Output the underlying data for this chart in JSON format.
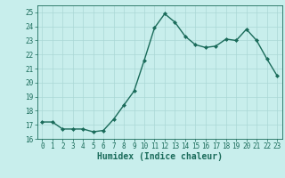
{
  "x": [
    0,
    1,
    2,
    3,
    4,
    5,
    6,
    7,
    8,
    9,
    10,
    11,
    12,
    13,
    14,
    15,
    16,
    17,
    18,
    19,
    20,
    21,
    22,
    23
  ],
  "y": [
    17.2,
    17.2,
    16.7,
    16.7,
    16.7,
    16.5,
    16.6,
    17.4,
    18.4,
    19.4,
    21.6,
    23.9,
    24.9,
    24.3,
    23.3,
    22.7,
    22.5,
    22.6,
    23.1,
    23.0,
    23.8,
    23.0,
    21.7,
    20.5
  ],
  "line_color": "#1a6b5a",
  "marker": "D",
  "marker_size": 2,
  "bg_color": "#c8eeec",
  "grid_color": "#aad8d6",
  "xlabel": "Humidex (Indice chaleur)",
  "xlabel_fontsize": 7,
  "xlim": [
    -0.5,
    23.5
  ],
  "ylim": [
    16,
    25.5
  ],
  "yticks": [
    16,
    17,
    18,
    19,
    20,
    21,
    22,
    23,
    24,
    25
  ],
  "xticks": [
    0,
    1,
    2,
    3,
    4,
    5,
    6,
    7,
    8,
    9,
    10,
    11,
    12,
    13,
    14,
    15,
    16,
    17,
    18,
    19,
    20,
    21,
    22,
    23
  ],
  "tick_fontsize": 5.5,
  "line_width": 1.0
}
